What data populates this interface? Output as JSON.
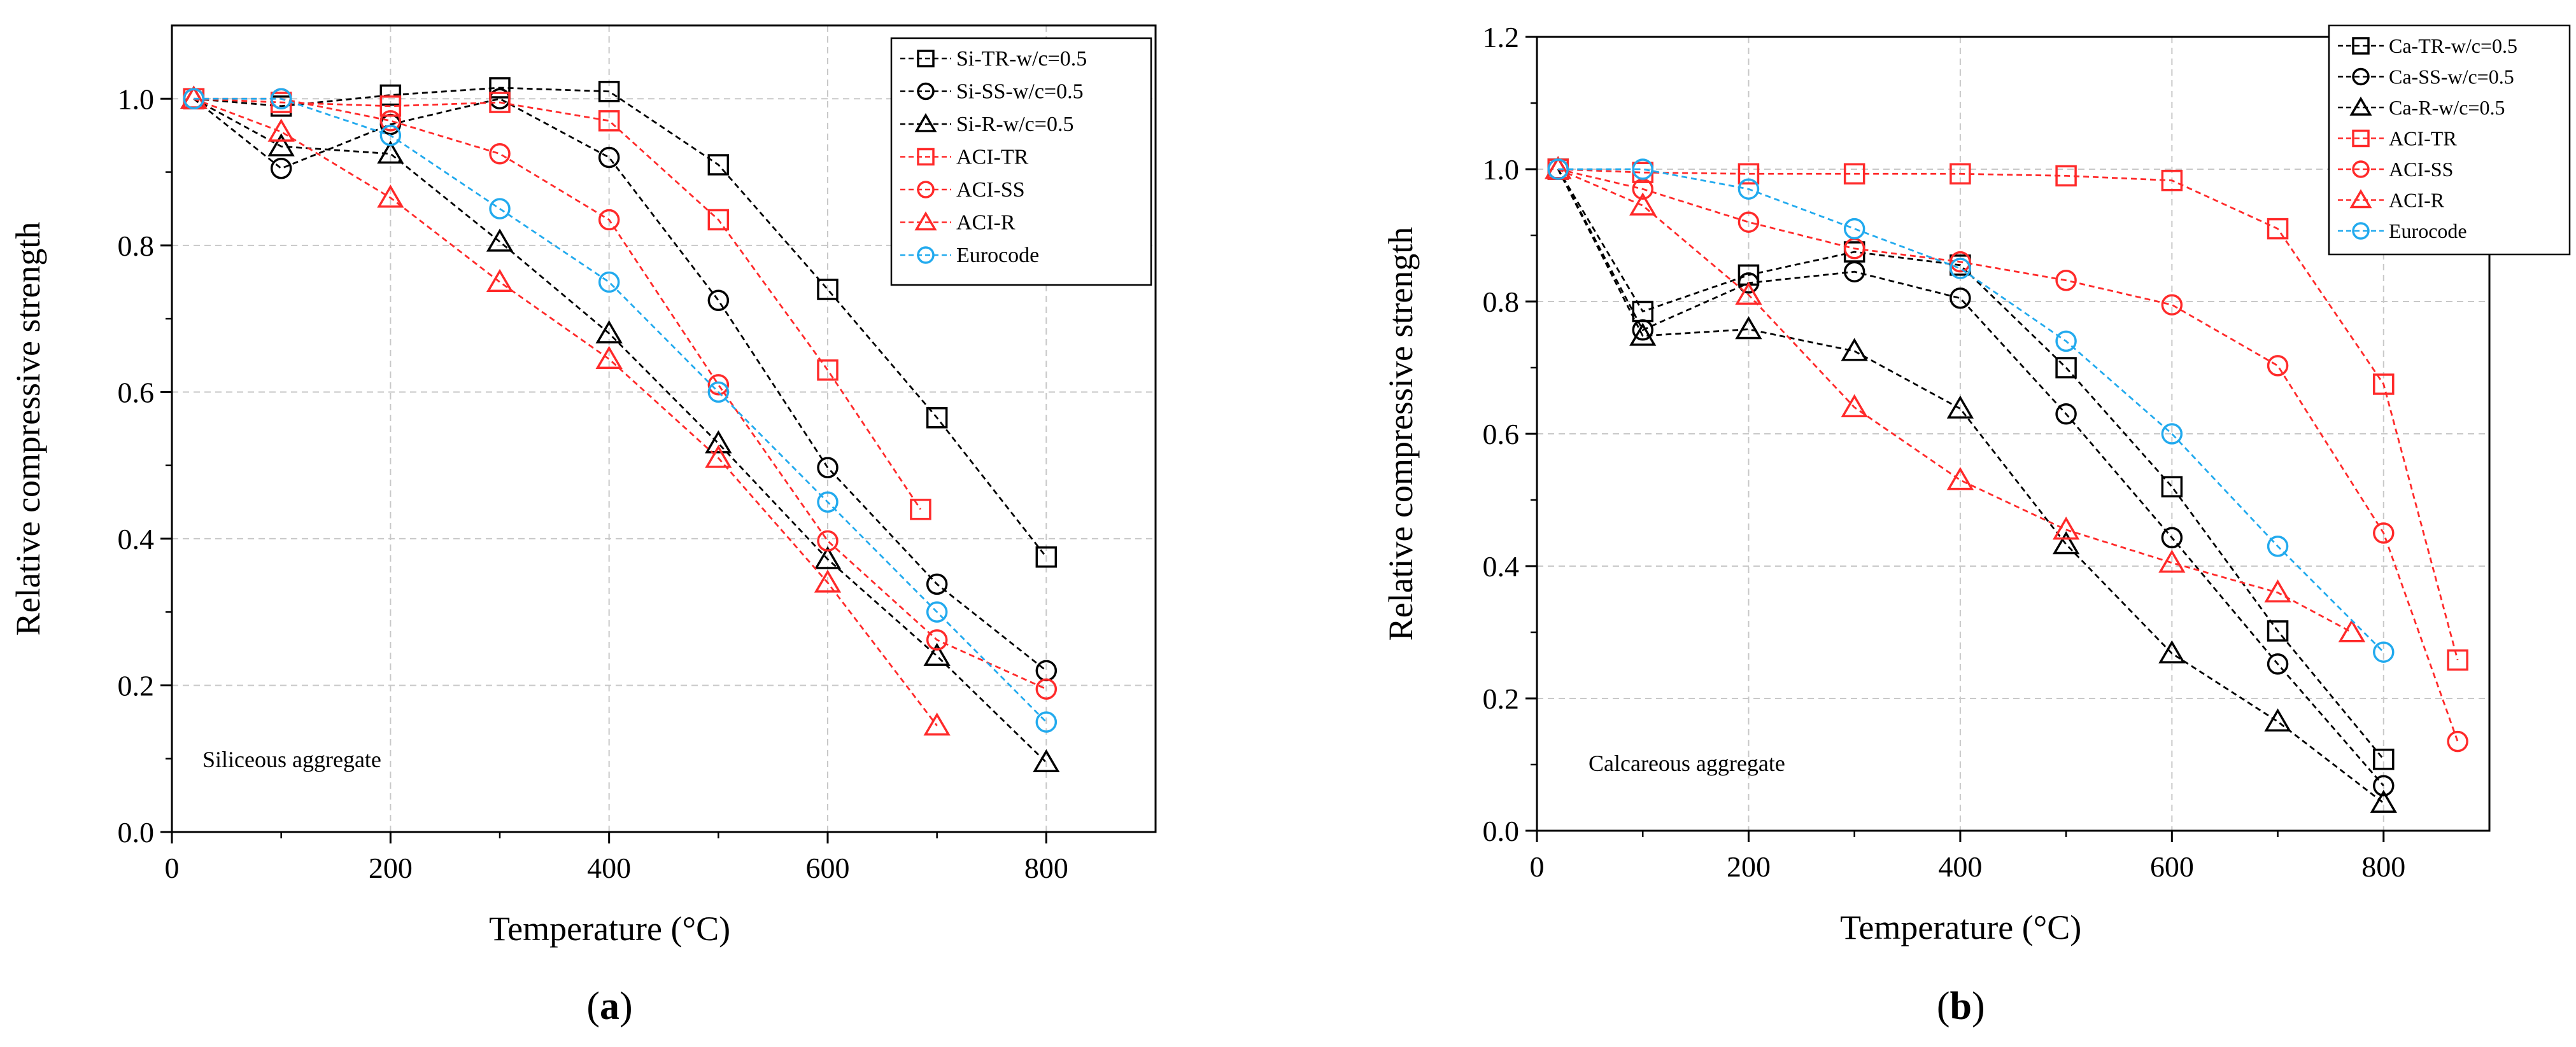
{
  "chart_data": [
    {
      "type": "line",
      "panel_label": "a",
      "annotation": "Siliceous aggregate",
      "xlabel": "Temperature (°C)",
      "ylabel": "Relative compressive strength",
      "xlim": [
        0,
        900
      ],
      "ylim": [
        0,
        1.1
      ],
      "xticks": [
        0,
        200,
        400,
        600,
        800
      ],
      "yticks": [
        0.0,
        0.2,
        0.4,
        0.6,
        0.8,
        1.0
      ],
      "xtick_labels": [
        "0",
        "200",
        "400",
        "600",
        "800"
      ],
      "ytick_labels": [
        "0.0",
        "0.2",
        "0.4",
        "0.6",
        "0.8",
        "1.0"
      ],
      "grid": true,
      "legend_position": "top-right",
      "series": [
        {
          "name": "Si-TR-w/c=0.5",
          "color": "#000000",
          "marker": "square",
          "x": [
            20,
            100,
            200,
            300,
            400,
            500,
            600,
            700,
            800
          ],
          "y": [
            1.0,
            0.99,
            1.005,
            1.015,
            1.01,
            0.91,
            0.74,
            0.565,
            0.375
          ]
        },
        {
          "name": "Si-SS-w/c=0.5",
          "color": "#000000",
          "marker": "circle",
          "x": [
            20,
            100,
            200,
            300,
            400,
            500,
            600,
            700,
            800
          ],
          "y": [
            1.0,
            0.905,
            0.965,
            1.0,
            0.92,
            0.725,
            0.497,
            0.338,
            0.22
          ]
        },
        {
          "name": "Si-R-w/c=0.5",
          "color": "#000000",
          "marker": "triangle",
          "x": [
            20,
            100,
            200,
            300,
            400,
            500,
            600,
            700,
            800
          ],
          "y": [
            1.0,
            0.935,
            0.925,
            0.805,
            0.68,
            0.53,
            0.372,
            0.24,
            0.095
          ]
        },
        {
          "name": "ACI-TR",
          "color": "#ff2a2a",
          "marker": "square",
          "x": [
            20,
            100,
            200,
            300,
            400,
            500,
            600,
            685
          ],
          "y": [
            1.0,
            0.995,
            0.99,
            0.995,
            0.97,
            0.835,
            0.63,
            0.44
          ]
        },
        {
          "name": "ACI-SS",
          "color": "#ff2a2a",
          "marker": "circle",
          "x": [
            20,
            100,
            200,
            300,
            400,
            500,
            600,
            700,
            800
          ],
          "y": [
            1.0,
            1.0,
            0.97,
            0.925,
            0.835,
            0.61,
            0.397,
            0.262,
            0.195
          ]
        },
        {
          "name": "ACI-R",
          "color": "#ff2a2a",
          "marker": "triangle",
          "x": [
            20,
            100,
            200,
            300,
            400,
            500,
            600,
            700
          ],
          "y": [
            1.0,
            0.955,
            0.865,
            0.75,
            0.645,
            0.51,
            0.34,
            0.145
          ]
        },
        {
          "name": "Eurocode",
          "color": "#22aaee",
          "marker": "circle",
          "x": [
            20,
            100,
            200,
            300,
            400,
            500,
            600,
            700,
            800
          ],
          "y": [
            1.0,
            1.0,
            0.95,
            0.85,
            0.75,
            0.6,
            0.45,
            0.3,
            0.15
          ]
        }
      ]
    },
    {
      "type": "line",
      "panel_label": "b",
      "annotation": "Calcareous aggregate",
      "xlabel": "Temperature (°C)",
      "ylabel": "Relative compressive strength",
      "xlim": [
        0,
        900
      ],
      "ylim": [
        0,
        1.2
      ],
      "xticks": [
        0,
        200,
        400,
        600,
        800
      ],
      "yticks": [
        0.0,
        0.2,
        0.4,
        0.6,
        0.8,
        1.0,
        1.2
      ],
      "xtick_labels": [
        "0",
        "200",
        "400",
        "600",
        "800"
      ],
      "ytick_labels": [
        "0.0",
        "0.2",
        "0.4",
        "0.6",
        "0.8",
        "1.0",
        "1.2"
      ],
      "grid": true,
      "legend_position": "top-right",
      "series": [
        {
          "name": "Ca-TR-w/c=0.5",
          "color": "#000000",
          "marker": "square",
          "x": [
            20,
            100,
            200,
            300,
            400,
            500,
            600,
            700,
            800
          ],
          "y": [
            1.0,
            0.785,
            0.84,
            0.875,
            0.855,
            0.7,
            0.52,
            0.302,
            0.108
          ]
        },
        {
          "name": "Ca-SS-w/c=0.5",
          "color": "#000000",
          "marker": "circle",
          "x": [
            20,
            100,
            200,
            300,
            400,
            500,
            600,
            700,
            800
          ],
          "y": [
            1.0,
            0.757,
            0.828,
            0.845,
            0.805,
            0.63,
            0.443,
            0.252,
            0.068
          ]
        },
        {
          "name": "Ca-R-w/c=0.5",
          "color": "#000000",
          "marker": "triangle",
          "x": [
            20,
            100,
            200,
            300,
            400,
            500,
            600,
            700,
            800
          ],
          "y": [
            1.0,
            0.748,
            0.758,
            0.725,
            0.638,
            0.433,
            0.268,
            0.165,
            0.042
          ]
        },
        {
          "name": "ACI-TR",
          "color": "#ff2a2a",
          "marker": "square",
          "x": [
            20,
            100,
            200,
            300,
            400,
            500,
            600,
            700,
            800,
            870
          ],
          "y": [
            1.0,
            0.995,
            0.993,
            0.993,
            0.993,
            0.99,
            0.983,
            0.91,
            0.675,
            0.258
          ]
        },
        {
          "name": "ACI-SS",
          "color": "#ff2a2a",
          "marker": "circle",
          "x": [
            20,
            100,
            200,
            300,
            400,
            500,
            600,
            700,
            800,
            870
          ],
          "y": [
            1.0,
            0.97,
            0.92,
            0.88,
            0.86,
            0.832,
            0.795,
            0.703,
            0.45,
            0.135
          ]
        },
        {
          "name": "ACI-R",
          "color": "#ff2a2a",
          "marker": "triangle",
          "x": [
            20,
            100,
            200,
            300,
            400,
            500,
            600,
            700,
            770
          ],
          "y": [
            1.0,
            0.945,
            0.81,
            0.64,
            0.53,
            0.455,
            0.405,
            0.36,
            0.3
          ]
        },
        {
          "name": "Eurocode",
          "color": "#22aaee",
          "marker": "circle",
          "x": [
            20,
            100,
            200,
            300,
            400,
            500,
            600,
            700,
            800
          ],
          "y": [
            1.0,
            1.0,
            0.97,
            0.91,
            0.85,
            0.74,
            0.6,
            0.43,
            0.27
          ]
        }
      ]
    }
  ]
}
